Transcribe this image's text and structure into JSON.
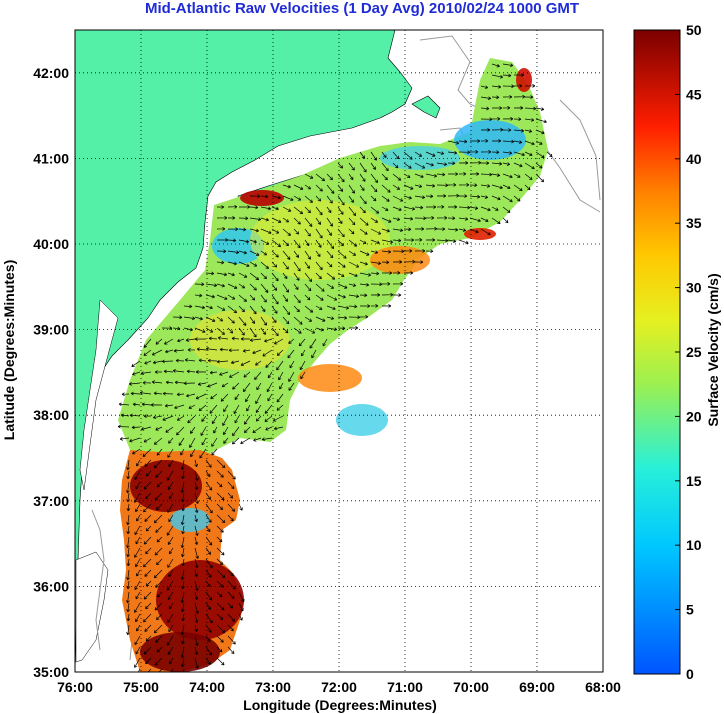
{
  "title": "Mid-Atlantic Raw Velocities (1 Day Avg) 2010/02/24 1000 GMT",
  "axes": {
    "xlabel": "Longitude (Degrees:Minutes)",
    "ylabel": "Latitude (Degrees:Minutes)",
    "xticks": [
      "76:00",
      "75:00",
      "74:00",
      "73:00",
      "72:00",
      "71:00",
      "70:00",
      "69:00",
      "68:00"
    ],
    "yticks": [
      "35:00",
      "36:00",
      "37:00",
      "38:00",
      "39:00",
      "40:00",
      "41:00",
      "42:00"
    ],
    "lon_range": [
      -76,
      -68
    ],
    "lat_range": [
      35,
      42.5
    ],
    "grid": "dotted"
  },
  "colorbar": {
    "label": "Surface Velocity (cm/s)",
    "ticks": [
      "0",
      "5",
      "10",
      "15",
      "20",
      "25",
      "30",
      "35",
      "40",
      "45",
      "50"
    ],
    "range": [
      0,
      50
    ],
    "colormap": "jet"
  },
  "colors": {
    "land": "#55f0a8",
    "ocean": "#ffffff",
    "title": "#1f2bd6",
    "bathymetry": "#9a9a9a"
  }
}
